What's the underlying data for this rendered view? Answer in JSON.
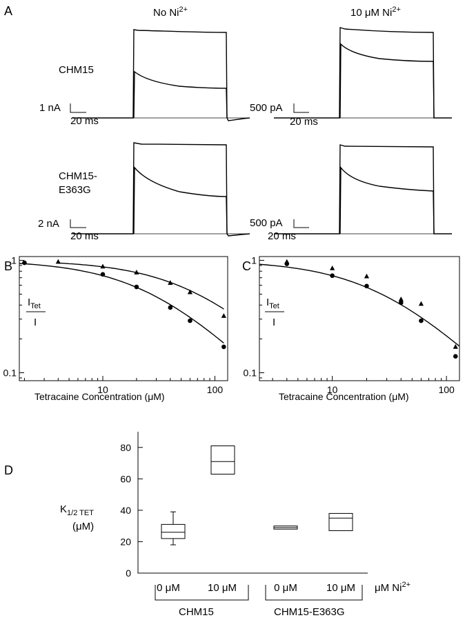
{
  "panels": {
    "a": "A",
    "b": "B",
    "c": "C",
    "d": "D"
  },
  "traces": {
    "col_no_ni": "No Ni",
    "col_no_ni_sup": "2+",
    "col_ni": "10 μM Ni",
    "col_ni_sup": "2+",
    "row1": "CHM15",
    "row2_line1": "CHM15-",
    "row2_line2": "E363G",
    "scale_r1_left_i": "1 nA",
    "scale_r1_left_t": "20 ms",
    "scale_r1_right_i": "500 pA",
    "scale_r1_right_t": "20 ms",
    "scale_r2_left_i": "2 nA",
    "scale_r2_left_t": "20 ms",
    "scale_r2_right_i": "500 pA",
    "scale_r2_right_t": "20 ms"
  },
  "chart_data": [
    {
      "id": "B",
      "type": "scatter",
      "xlabel": "Tetracaine Concentration (μM)",
      "ylabel_main": "I",
      "ylabel_sub": "Tet",
      "ylabel_den": "I",
      "xscale": "log",
      "yscale": "log",
      "xlim": [
        1.8,
        130
      ],
      "ylim": [
        0.085,
        1.08
      ],
      "xticks": [
        "10",
        "100"
      ],
      "yticks": [
        "1",
        "0.1"
      ],
      "series": [
        {
          "marker": "triangle",
          "x": [
            4,
            10,
            20,
            40,
            60,
            120
          ],
          "y": [
            0.97,
            0.88,
            0.78,
            0.63,
            0.52,
            0.32
          ]
        },
        {
          "marker": "circle",
          "x": [
            2,
            10,
            20,
            40,
            60,
            120
          ],
          "y": [
            0.95,
            0.75,
            0.58,
            0.38,
            0.29,
            0.17
          ]
        }
      ]
    },
    {
      "id": "C",
      "type": "scatter",
      "xlabel": "Tetracaine Concentration (μM)",
      "ylabel_main": "I",
      "ylabel_sub": "Tet",
      "ylabel_den": "I",
      "xscale": "log",
      "yscale": "log",
      "xlim": [
        2.3,
        130
      ],
      "ylim": [
        0.085,
        1.08
      ],
      "xticks": [
        "10",
        "100"
      ],
      "yticks": [
        "1",
        "0.1"
      ],
      "series": [
        {
          "marker": "triangle",
          "x": [
            4,
            10,
            20,
            40,
            60,
            120
          ],
          "y": [
            0.97,
            0.85,
            0.72,
            0.45,
            0.41,
            0.17
          ]
        },
        {
          "marker": "circle",
          "x": [
            4,
            10,
            20,
            40,
            60,
            120
          ],
          "y": [
            0.93,
            0.73,
            0.59,
            0.42,
            0.29,
            0.14
          ]
        }
      ]
    },
    {
      "id": "D",
      "type": "box",
      "ylabel_main": "K",
      "ylabel_sub": "1/2 TET",
      "ylabel_unit": "(μM)",
      "ylim": [
        0,
        90
      ],
      "yticks": [
        0,
        20,
        40,
        60,
        80
      ],
      "categories": [
        "0 μM",
        "10 μM",
        "0 μM",
        "10 μM"
      ],
      "x_unit": "μM Ni",
      "x_unit_sup": "2+",
      "groups": [
        "CHM15",
        "CHM15-E363G"
      ],
      "boxes": [
        {
          "q1": 22,
          "median": 26,
          "q3": 31,
          "whisker_low": 18,
          "whisker_high": 39
        },
        {
          "q1": 63,
          "median": 71,
          "q3": 81
        },
        {
          "q1": 28,
          "median": 29,
          "q3": 30
        },
        {
          "q1": 27,
          "median": 35,
          "q3": 38
        }
      ]
    }
  ]
}
